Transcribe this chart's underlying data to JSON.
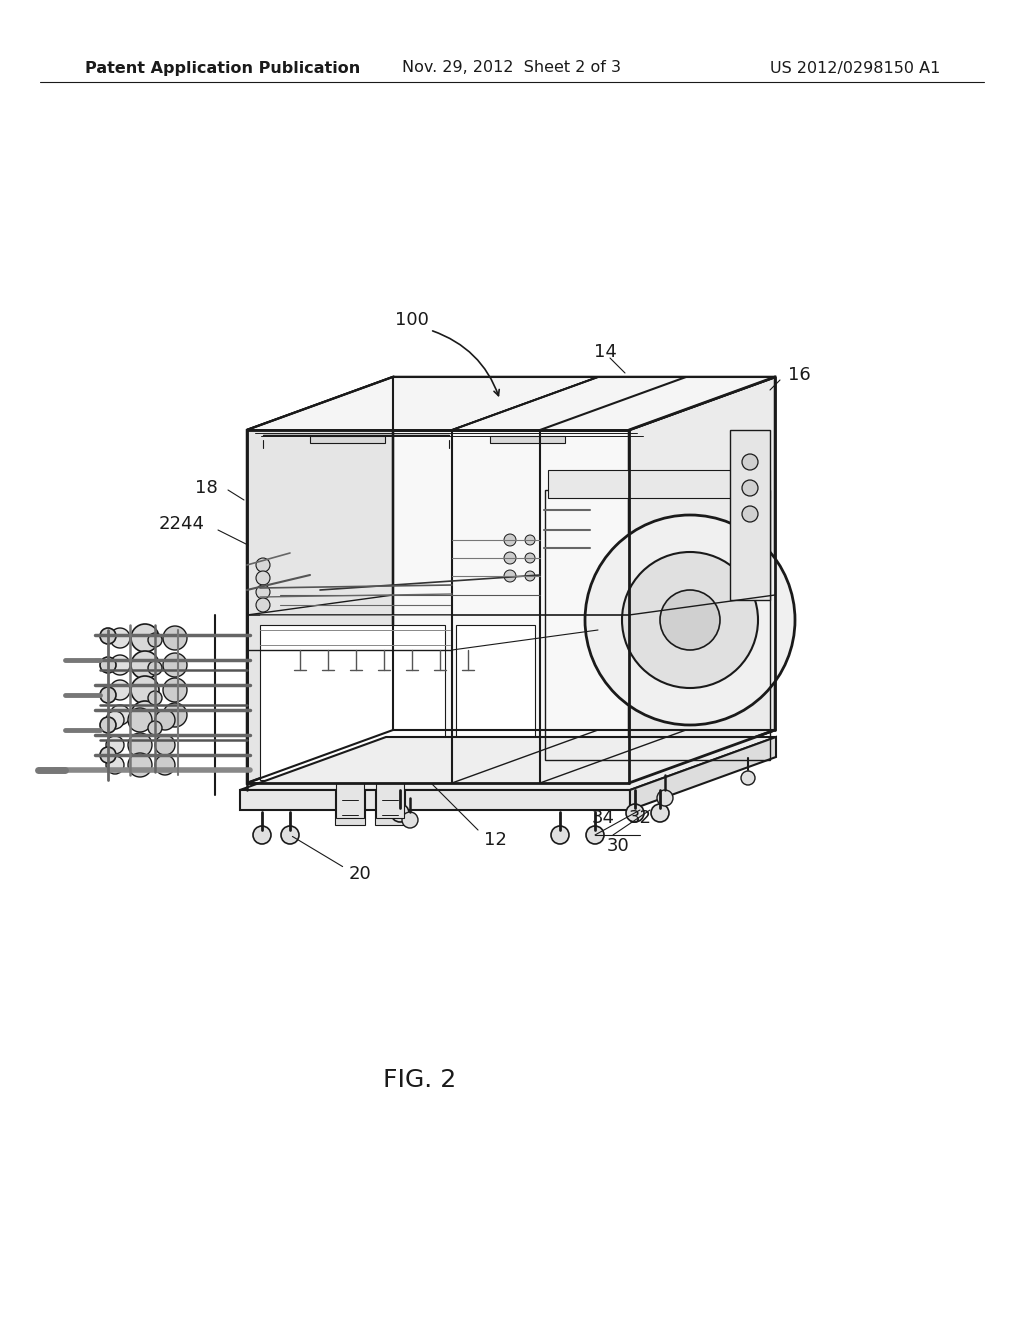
{
  "background_color": "#ffffff",
  "header_left": "Patent Application Publication",
  "header_center": "Nov. 29, 2012  Sheet 2 of 3",
  "header_right": "US 2012/0298150 A1",
  "figure_label": "FIG. 2",
  "line_color": "#1a1a1a",
  "text_color": "#1a1a1a",
  "lw_main": 1.8,
  "lw_inner": 1.0,
  "lw_thin": 0.7
}
